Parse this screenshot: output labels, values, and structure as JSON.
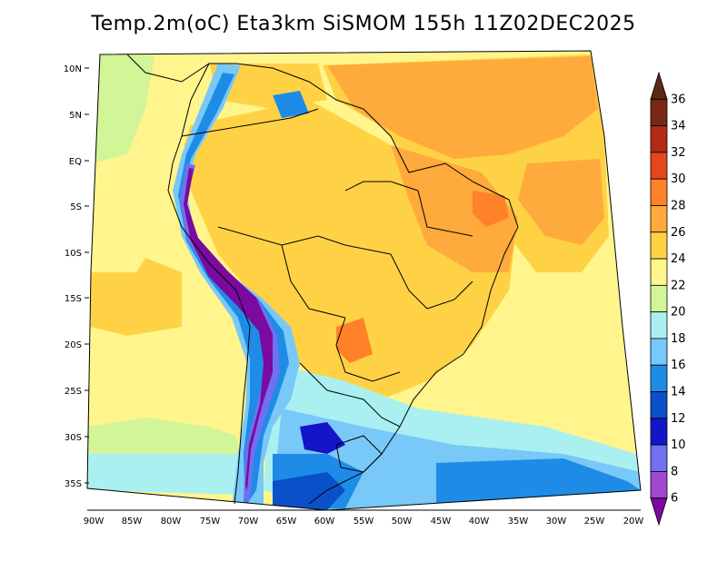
{
  "title": "Temp.2m(oC) Eta3km SiSMOM 155h 11Z02DEC2025",
  "lat_labels": [
    "10N",
    "5N",
    "EQ",
    "5S",
    "10S",
    "15S",
    "20S",
    "25S",
    "30S",
    "35S"
  ],
  "lon_labels": [
    "90W",
    "85W",
    "80W",
    "75W",
    "70W",
    "65W",
    "60W",
    "55W",
    "50W",
    "45W",
    "40W",
    "35W",
    "30W",
    "25W",
    "20W"
  ],
  "colorbar": {
    "levels": [
      "6",
      "8",
      "10",
      "12",
      "14",
      "16",
      "18",
      "20",
      "22",
      "24",
      "26",
      "28",
      "30",
      "32",
      "34",
      "36"
    ],
    "colors": [
      "#7a0aa0",
      "#a048d0",
      "#7070f0",
      "#1414c8",
      "#0a50c8",
      "#1e8ce6",
      "#78c8f8",
      "#aaf0f0",
      "#d2f598",
      "#fff58c",
      "#ffd246",
      "#ffaa3c",
      "#ff8228",
      "#e6461e",
      "#b42a14",
      "#782814",
      "#5a2a14"
    ]
  }
}
